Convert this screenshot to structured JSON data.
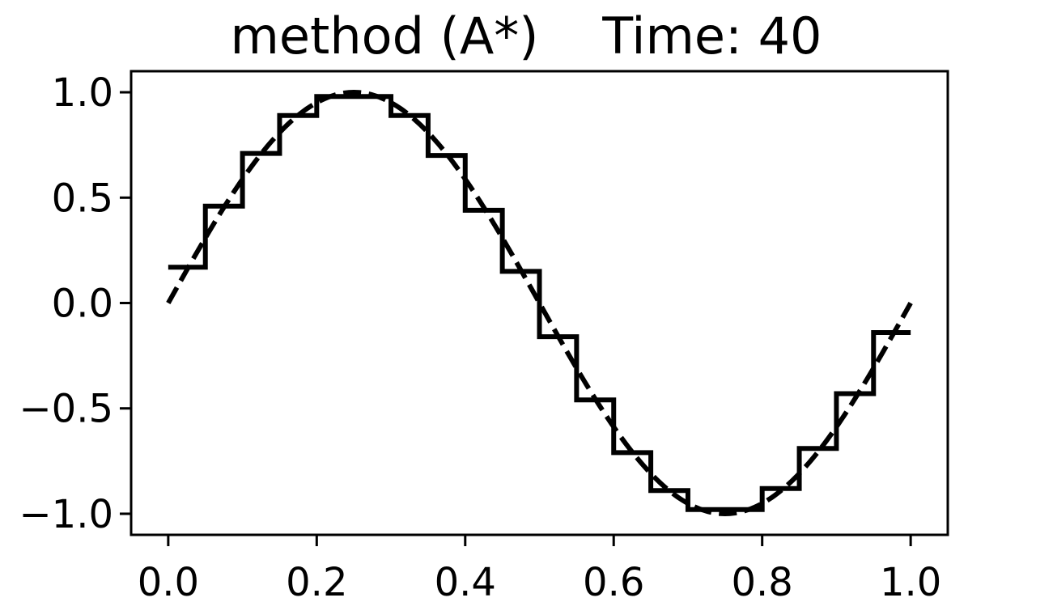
{
  "chart_data": {
    "type": "line",
    "title": "method (A*)    Time: 40",
    "xlabel": "",
    "ylabel": "",
    "xlim": [
      -0.05,
      1.05
    ],
    "ylim": [
      -1.1,
      1.1
    ],
    "grid": false,
    "xticks": [
      0.0,
      0.2,
      0.4,
      0.6,
      0.8,
      1.0
    ],
    "xtick_labels": [
      "0.0",
      "0.2",
      "0.4",
      "0.6",
      "0.8",
      "1.0"
    ],
    "yticks": [
      1.0,
      0.5,
      0.0,
      -0.5,
      -1.0
    ],
    "ytick_labels": [
      "1.0",
      "0.5",
      "0.0",
      "−0.5",
      "−1.0"
    ],
    "colors": {
      "line": "#000000",
      "frame": "#000000"
    },
    "series": [
      {
        "style": "solid-step",
        "bin_edges": [
          0.0,
          0.05,
          0.1,
          0.15,
          0.2,
          0.25,
          0.3,
          0.35,
          0.4,
          0.45,
          0.5,
          0.55,
          0.6,
          0.65,
          0.7,
          0.75,
          0.8,
          0.85,
          0.9,
          0.95,
          1.0
        ],
        "values": [
          0.17,
          0.46,
          0.71,
          0.89,
          0.98,
          0.98,
          0.89,
          0.7,
          0.44,
          0.15,
          -0.16,
          -0.46,
          -0.71,
          -0.89,
          -0.98,
          -0.98,
          -0.88,
          -0.69,
          -0.43,
          -0.14
        ]
      },
      {
        "style": "dashed",
        "function": "sin(2*pi*x)",
        "x_range": [
          0.0,
          1.0
        ]
      }
    ]
  }
}
